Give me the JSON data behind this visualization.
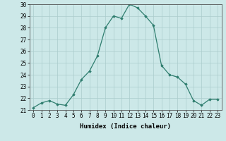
{
  "x": [
    0,
    1,
    2,
    3,
    4,
    5,
    6,
    7,
    8,
    9,
    10,
    11,
    12,
    13,
    14,
    15,
    16,
    17,
    18,
    19,
    20,
    21,
    22,
    23
  ],
  "y": [
    21.2,
    21.6,
    21.8,
    21.5,
    21.4,
    22.3,
    23.6,
    24.3,
    25.6,
    28.0,
    29.0,
    28.8,
    30.0,
    29.7,
    29.0,
    28.2,
    24.8,
    24.0,
    23.8,
    23.2,
    21.8,
    21.4,
    21.9,
    21.9
  ],
  "xlabel": "Humidex (Indice chaleur)",
  "ylabel": "",
  "ylim": [
    21,
    30
  ],
  "yticks": [
    21,
    22,
    23,
    24,
    25,
    26,
    27,
    28,
    29,
    30
  ],
  "xticks": [
    0,
    1,
    2,
    3,
    4,
    5,
    6,
    7,
    8,
    9,
    10,
    11,
    12,
    13,
    14,
    15,
    16,
    17,
    18,
    19,
    20,
    21,
    22,
    23
  ],
  "line_color": "#2e7d6e",
  "marker": "D",
  "marker_size": 1.8,
  "bg_color": "#cce8e8",
  "grid_color": "#aacccc",
  "axis_fontsize": 5.5,
  "label_fontsize": 6.5
}
